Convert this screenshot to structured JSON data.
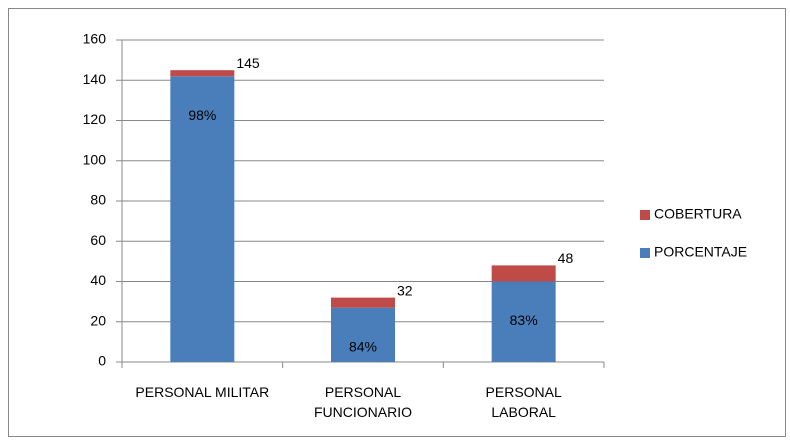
{
  "chart_data": {
    "type": "stacked_bar",
    "categories": [
      "PERSONAL MILITAR",
      "PERSONAL\nFUNCIONARIO",
      "PERSONAL\nLABORAL"
    ],
    "series": [
      {
        "name": "PORCENTAJE",
        "color": "#4a7ebb",
        "values": [
          142,
          27,
          40
        ],
        "labels": [
          "98%",
          "84%",
          "83%"
        ]
      },
      {
        "name": "COBERTURA",
        "color": "#be4b48",
        "values": [
          3,
          5,
          8
        ]
      }
    ],
    "total_labels": [
      145,
      32,
      48
    ],
    "ylim": [
      0,
      160
    ],
    "yticks": [
      0,
      20,
      40,
      60,
      80,
      100,
      120,
      140,
      160
    ],
    "grid": true,
    "legend": "right"
  }
}
